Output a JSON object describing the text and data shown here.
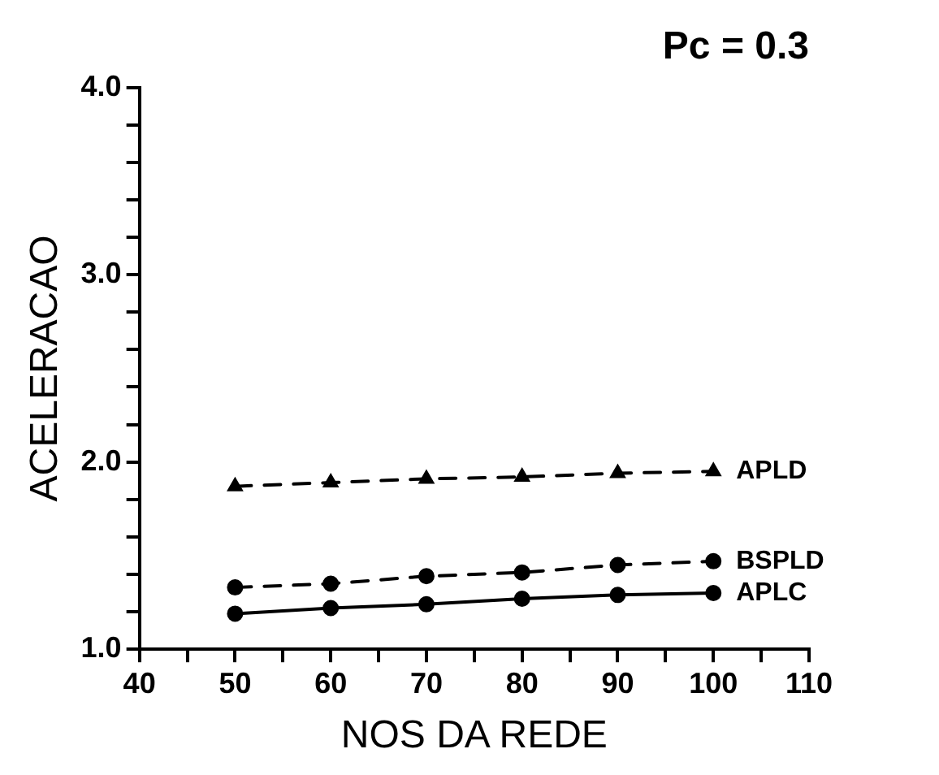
{
  "chart_data": {
    "type": "line",
    "title": "Pc = 0.3",
    "xlabel": "NOS DA REDE",
    "ylabel": "ACELERACAO",
    "x": [
      50,
      60,
      70,
      80,
      90,
      100
    ],
    "series": [
      {
        "name": "APLD",
        "color": "#000000",
        "values": [
          1.87,
          1.89,
          1.91,
          1.92,
          1.94,
          1.95
        ],
        "marker": "triangle",
        "line_style": "dashed"
      },
      {
        "name": "BSPLD",
        "color": "#000000",
        "values": [
          1.33,
          1.35,
          1.39,
          1.41,
          1.45,
          1.47
        ],
        "marker": "circle",
        "line_style": "dashed"
      },
      {
        "name": "APLC",
        "color": "#000000",
        "values": [
          1.19,
          1.22,
          1.24,
          1.27,
          1.29,
          1.3
        ],
        "marker": "circle",
        "line_style": "solid"
      }
    ],
    "xlim": [
      40,
      110
    ],
    "xticks": [
      40,
      {
        "value": 45,
        "label": null
      },
      50,
      {
        "value": 55,
        "label": null
      },
      60,
      {
        "value": 65,
        "label": null
      },
      70,
      {
        "value": 75,
        "label": null
      },
      80,
      {
        "value": 85,
        "label": null
      },
      90,
      {
        "value": 95,
        "label": null
      },
      100,
      {
        "value": 105,
        "label": null
      },
      110
    ],
    "ylim": [
      1,
      4
    ],
    "yticks": [
      {
        "value": 1,
        "label": "1.0"
      },
      {
        "value": 1.2,
        "label": null
      },
      {
        "value": 1.4,
        "label": null
      },
      {
        "value": 1.6,
        "label": null
      },
      {
        "value": 1.8,
        "label": null
      },
      {
        "value": 2,
        "label": "2.0"
      },
      {
        "value": 2.2,
        "label": null
      },
      {
        "value": 2.4,
        "label": null
      },
      {
        "value": 2.6,
        "label": null
      },
      {
        "value": 2.8,
        "label": null
      },
      {
        "value": 3,
        "label": "3.0"
      },
      {
        "value": 3.2,
        "label": null
      },
      {
        "value": 3.4,
        "label": null
      },
      {
        "value": 3.6,
        "label": null
      },
      {
        "value": 3.8,
        "label": null
      },
      {
        "value": 4,
        "label": "4.0"
      }
    ],
    "grid": false,
    "legend": false
  }
}
